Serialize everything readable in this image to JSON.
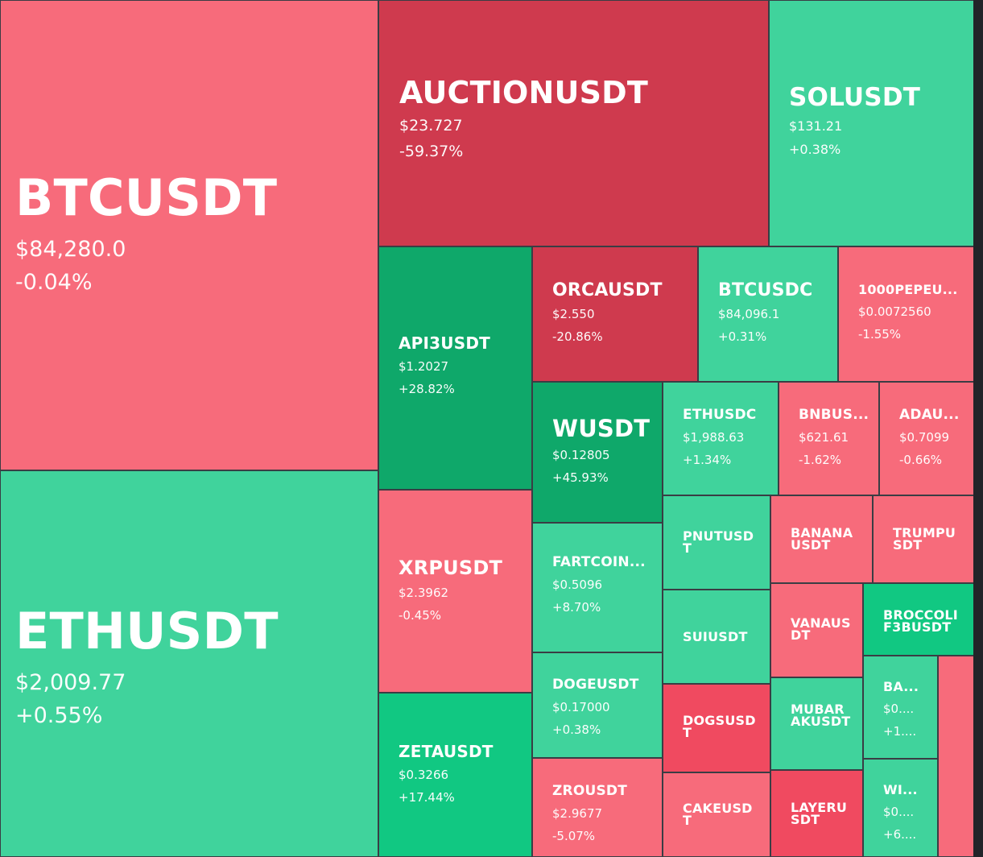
{
  "colors": {
    "loss": "#f76b7b",
    "big_loss": "#cf3a4e",
    "strong_loss": "#f04a60",
    "gain": "#40d39c",
    "big_gain": "#0fa86a",
    "strong_gain": "#11c882"
  },
  "tiles": [
    {
      "id": "btcusdt",
      "symbol": "BTCUSDT",
      "price": "$84,280.0",
      "change": "-0.04%"
    },
    {
      "id": "ethusdt",
      "symbol": "ETHUSDT",
      "price": "$2,009.77",
      "change": "+0.55%"
    },
    {
      "id": "auctionusdt",
      "symbol": "AUCTIONUSDT",
      "price": "$23.727",
      "change": "-59.37%"
    },
    {
      "id": "solusdt",
      "symbol": "SOLUSDT",
      "price": "$131.21",
      "change": "+0.38%"
    },
    {
      "id": "api3usdt",
      "symbol": "API3USDT",
      "price": "$1.2027",
      "change": "+28.82%"
    },
    {
      "id": "orcausdt",
      "symbol": "ORCAUSDT",
      "price": "$2.550",
      "change": "-20.86%"
    },
    {
      "id": "btcusdc",
      "symbol": "BTCUSDC",
      "price": "$84,096.1",
      "change": "+0.31%"
    },
    {
      "id": "1000pepeusdt",
      "symbol": "1000PEPEU...",
      "price": "$0.0072560",
      "change": "-1.55%"
    },
    {
      "id": "xrpusdt",
      "symbol": "XRPUSDT",
      "price": "$2.3962",
      "change": "-0.45%"
    },
    {
      "id": "wusdt",
      "symbol": "WUSDT",
      "price": "$0.12805",
      "change": "+45.93%"
    },
    {
      "id": "ethusdc",
      "symbol": "ETHUSDC",
      "price": "$1,988.63",
      "change": "+1.34%"
    },
    {
      "id": "bnbusdt",
      "symbol": "BNBUS...",
      "price": "$621.61",
      "change": "-1.62%"
    },
    {
      "id": "adausdt",
      "symbol": "ADAU...",
      "price": "$0.7099",
      "change": "-0.66%"
    },
    {
      "id": "fartcoinusdt",
      "symbol": "FARTCOIN...",
      "price": "$0.5096",
      "change": "+8.70%"
    },
    {
      "id": "pnutusdt",
      "symbol": "PNUTUSDT",
      "price": "",
      "change": ""
    },
    {
      "id": "bananausdt",
      "symbol": "BANANAUSDT",
      "price": "",
      "change": ""
    },
    {
      "id": "trumpusdt",
      "symbol": "TRUMPUSDT",
      "price": "",
      "change": ""
    },
    {
      "id": "suiusdt",
      "symbol": "SUIUSDT",
      "price": "",
      "change": ""
    },
    {
      "id": "vanausdt",
      "symbol": "VANAUSDT",
      "price": "",
      "change": ""
    },
    {
      "id": "broccoli",
      "symbol": "BROCCOLIF3BUSDT",
      "price": "",
      "change": ""
    },
    {
      "id": "zetausdt",
      "symbol": "ZETAUSDT",
      "price": "$0.3266",
      "change": "+17.44%"
    },
    {
      "id": "dogeusdt",
      "symbol": "DOGEUSDT",
      "price": "$0.17000",
      "change": "+0.38%"
    },
    {
      "id": "dogsusdt",
      "symbol": "DOGSUSDT",
      "price": "",
      "change": ""
    },
    {
      "id": "mubarakusdt",
      "symbol": "MUBARAKUSDT",
      "price": "",
      "change": ""
    },
    {
      "id": "ba",
      "symbol": "BA...",
      "price": "$0....",
      "change": "+1...."
    },
    {
      "id": "zrousdt",
      "symbol": "ZROUSDT",
      "price": "$2.9677",
      "change": "-5.07%"
    },
    {
      "id": "cakeusdt",
      "symbol": "CAKEUSDT",
      "price": "",
      "change": ""
    },
    {
      "id": "layerusdt",
      "symbol": "LAYERUSDT",
      "price": "",
      "change": ""
    },
    {
      "id": "wi",
      "symbol": "WI...",
      "price": "$0....",
      "change": "+6...."
    },
    {
      "id": "edge",
      "symbol": "",
      "price": "",
      "change": ""
    }
  ]
}
